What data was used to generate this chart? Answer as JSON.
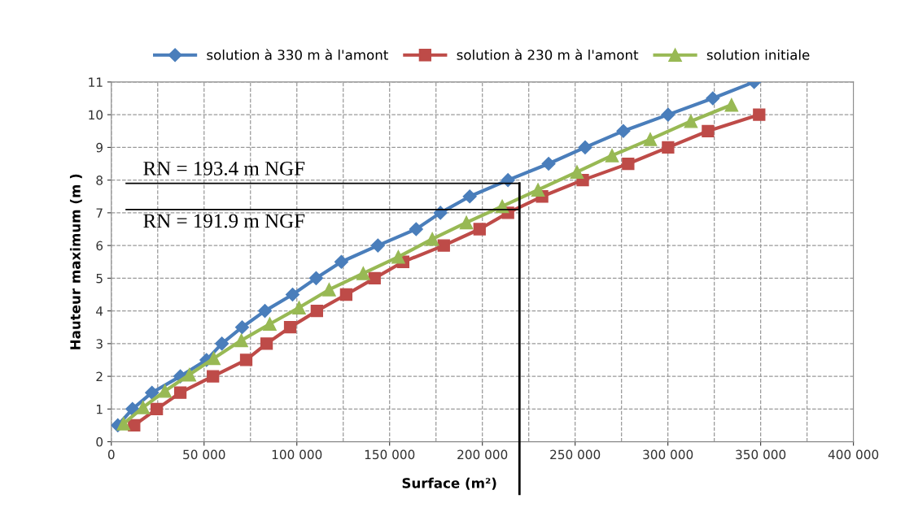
{
  "chart_data": {
    "type": "line",
    "xlabel": "Surface (m²)",
    "ylabel": "Hauteur maximum (m )",
    "xlim": [
      0,
      400000
    ],
    "xticks": [
      0,
      {
        "value": 50000,
        "label": "50 000"
      },
      {
        "value": 100000,
        "label": "100 000"
      },
      {
        "value": 150000,
        "label": "150 000"
      },
      {
        "value": 200000,
        "label": "200 000"
      },
      {
        "value": 250000,
        "label": "250 000"
      },
      {
        "value": 300000,
        "label": "300 000"
      },
      {
        "value": 350000,
        "label": "350 000"
      },
      {
        "value": 400000,
        "label": "400 000"
      }
    ],
    "ylim": [
      0,
      11
    ],
    "yticks": [
      0,
      1,
      2,
      3,
      4,
      5,
      6,
      7,
      8,
      9,
      10,
      11
    ],
    "grid": true,
    "legend": "top",
    "line_style": "solid",
    "series": [
      {
        "name": "solution à 330 m à l'amont",
        "color": "#4a7ebb",
        "marker": "diamond",
        "x": [
          3500,
          11400,
          21900,
          37200,
          51300,
          59600,
          70500,
          82800,
          97700,
          110400,
          124000,
          143700,
          164300,
          177400,
          193200,
          213800,
          235700,
          255400,
          276000,
          300100,
          324200,
          346500
        ],
        "values": [
          0.5,
          1,
          1.5,
          2,
          2.5,
          3,
          3.5,
          4,
          4.5,
          5,
          5.5,
          6,
          6.5,
          7,
          7.5,
          8,
          8.5,
          9,
          9.5,
          10,
          10.5,
          11
        ]
      },
      {
        "name": "solution à 230 m à l'amont",
        "color": "#be4b48",
        "marker": "square",
        "x": [
          12300,
          24500,
          37200,
          54800,
          72700,
          83700,
          96400,
          110800,
          126600,
          141900,
          157300,
          179200,
          198500,
          213800,
          232200,
          254100,
          278600,
          300100,
          321600,
          349200
        ],
        "values": [
          0.5,
          1,
          1.5,
          2,
          2.5,
          3,
          3.5,
          4,
          4.5,
          5,
          5.5,
          6,
          6.5,
          7,
          7.5,
          8,
          8.5,
          9,
          9.5,
          10
        ]
      },
      {
        "name": "solution initiale",
        "color": "#98b954",
        "marker": "triangle",
        "x": [
          6600,
          17100,
          28900,
          42100,
          55200,
          70100,
          85400,
          101200,
          117400,
          135800,
          154700,
          173000,
          191400,
          210700,
          230000,
          251000,
          269900,
          290500,
          312400,
          334300
        ],
        "values": [
          0.55,
          1.05,
          1.55,
          2.05,
          2.55,
          3.1,
          3.6,
          4.1,
          4.65,
          5.15,
          5.65,
          6.2,
          6.7,
          7.2,
          7.7,
          8.25,
          8.75,
          9.25,
          9.8,
          10.3
        ]
      }
    ],
    "ref_lines": [
      {
        "axis": "y",
        "value": 7.9,
        "color": "#000000"
      },
      {
        "axis": "y",
        "value": 7.1,
        "color": "#000000"
      },
      {
        "axis": "x",
        "value": 220000,
        "color": "#000000"
      }
    ],
    "annotations": [
      "RN = 193.4 m NGF",
      "RN = 191.9 m NGF"
    ]
  }
}
